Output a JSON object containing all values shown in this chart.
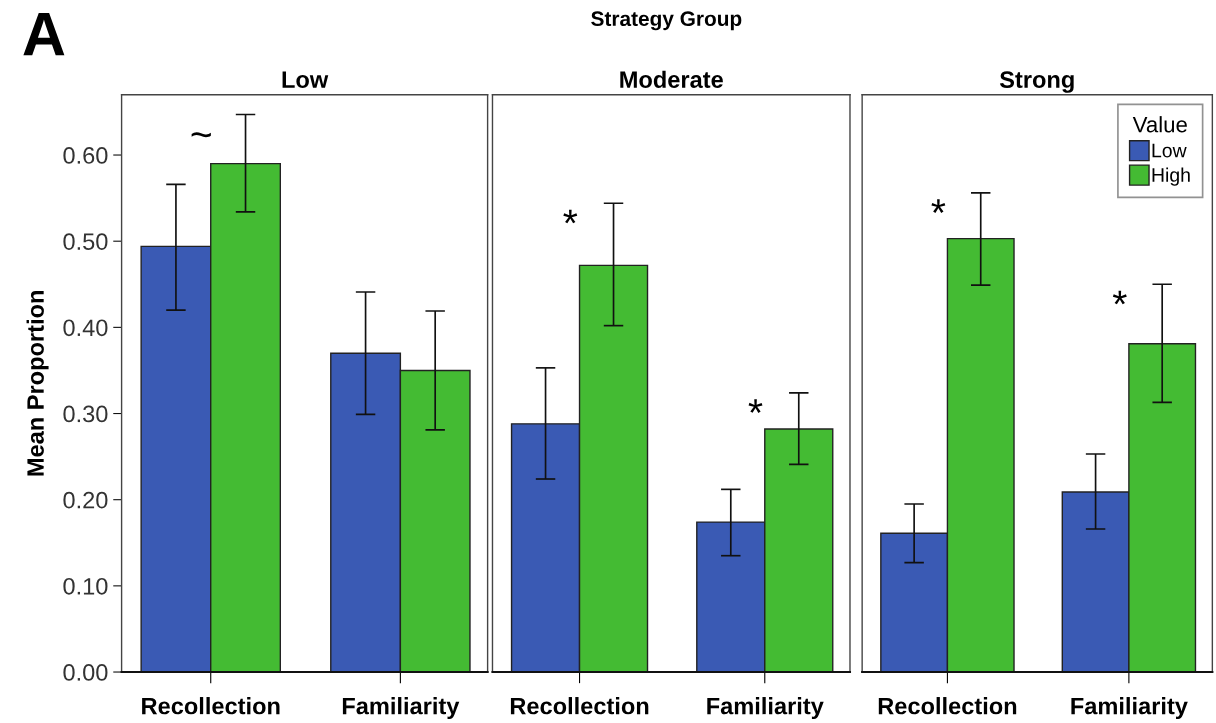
{
  "chart_data": [
    {
      "type": "bar",
      "title": "Low",
      "ylabel": "Mean Proportion",
      "categories": [
        "Recollection",
        "Familiarity"
      ],
      "ylim": [
        0,
        0.67
      ],
      "yticks": [
        {
          "value": 0,
          "label": "0.00"
        },
        {
          "value": 0.1,
          "label": "0.10"
        },
        {
          "value": 0.2,
          "label": "0.20"
        },
        {
          "value": 0.3,
          "label": "0.30"
        },
        {
          "value": 0.4,
          "label": "0.40"
        },
        {
          "value": 0.5,
          "label": "0.50"
        },
        {
          "value": 0.6,
          "label": "0.60"
        }
      ],
      "grid": false,
      "legend": false,
      "series": [
        {
          "color": "#3a5ab4",
          "values": [
            0.494,
            0.37
          ],
          "errors": [
            [
              0.42,
              0.566
            ],
            [
              0.299,
              0.441
            ]
          ]
        },
        {
          "color": "#44bb33",
          "values": [
            0.59,
            0.35
          ],
          "errors": [
            [
              0.534,
              0.647
            ],
            [
              0.281,
              0.419
            ]
          ]
        }
      ],
      "annotations": [
        "A",
        "Strategy Group",
        "~"
      ]
    },
    {
      "type": "bar",
      "title": "Moderate",
      "categories": [
        "Recollection",
        "Familiarity"
      ],
      "ylim": [
        0,
        0.67
      ],
      "tick_labels": "x",
      "grid": false,
      "legend": false,
      "series": [
        {
          "color": "#3a5ab4",
          "values": [
            0.288,
            0.174
          ],
          "errors": [
            [
              0.224,
              0.353
            ],
            [
              0.135,
              0.212
            ]
          ]
        },
        {
          "color": "#44bb33",
          "values": [
            0.472,
            0.282
          ],
          "errors": [
            [
              0.402,
              0.544
            ],
            [
              0.241,
              0.324
            ]
          ]
        }
      ],
      "annotations": [
        "*",
        "*"
      ]
    },
    {
      "type": "bar",
      "title": "Strong",
      "categories": [
        "Recollection",
        "Familiarity"
      ],
      "ylim": [
        0,
        0.67
      ],
      "tick_labels": "x",
      "grid": false,
      "legend": "top right",
      "legend_title": "Value",
      "series": [
        {
          "name": "Low",
          "color": "#3a5ab4",
          "values": [
            0.161,
            0.209
          ],
          "errors": [
            [
              0.127,
              0.195
            ],
            [
              0.166,
              0.253
            ]
          ]
        },
        {
          "name": "High",
          "color": "#44bb33",
          "values": [
            0.503,
            0.381
          ],
          "errors": [
            [
              0.449,
              0.556
            ],
            [
              0.313,
              0.45
            ]
          ]
        }
      ],
      "annotations": [
        "*",
        "*"
      ]
    }
  ]
}
